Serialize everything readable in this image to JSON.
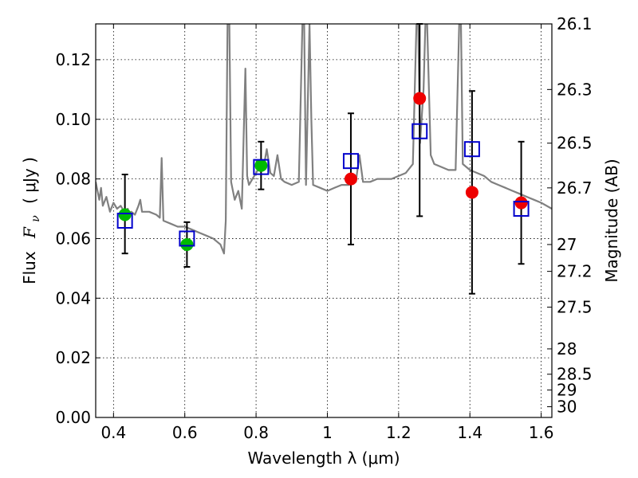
{
  "chart_data": {
    "type": "scatter",
    "xlabel": "Wavelength  λ (μm)",
    "ylabel_parts": [
      "Flux",
      "F",
      "ν",
      "(  μJy )"
    ],
    "ylabel_right": "Magnitude (AB)",
    "xlim": [
      0.35,
      1.63
    ],
    "ylim": [
      0.0,
      0.132
    ],
    "grid": true,
    "x_ticks": [
      0.4,
      0.6,
      0.8,
      1.0,
      1.2,
      1.4,
      1.6
    ],
    "x_tick_labels": [
      "0.4",
      "0.6",
      "0.8",
      "1",
      "1.2",
      "1.4",
      "1.6"
    ],
    "y_ticks": [
      0.0,
      0.02,
      0.04,
      0.06,
      0.08,
      0.1,
      0.12
    ],
    "y_tick_labels": [
      "0.00",
      "0.02",
      "0.04",
      "0.06",
      "0.08",
      "0.10",
      "0.12"
    ],
    "right_ticks": [
      {
        "label": "26.1",
        "flux": 0.132
      },
      {
        "label": "26.3",
        "flux": 0.11
      },
      {
        "label": "26.5",
        "flux": 0.092
      },
      {
        "label": "26.7",
        "flux": 0.077
      },
      {
        "label": "27",
        "flux": 0.058
      },
      {
        "label": "27.2",
        "flux": 0.049
      },
      {
        "label": "27.5",
        "flux": 0.037
      },
      {
        "label": "28",
        "flux": 0.023
      },
      {
        "label": "28.5",
        "flux": 0.0145
      },
      {
        "label": "29",
        "flux": 0.0092
      },
      {
        "label": "30",
        "flux": 0.0036
      }
    ],
    "colors": {
      "spectrum": "#808080",
      "model_squares": "#0000cc",
      "green_points": "#00bb00",
      "red_points": "#ee0000",
      "error_bars": "#000000"
    },
    "spectrum": [
      [
        0.35,
        0.079
      ],
      [
        0.36,
        0.073
      ],
      [
        0.365,
        0.077
      ],
      [
        0.37,
        0.071
      ],
      [
        0.38,
        0.074
      ],
      [
        0.39,
        0.069
      ],
      [
        0.4,
        0.072
      ],
      [
        0.41,
        0.07
      ],
      [
        0.42,
        0.071
      ],
      [
        0.43,
        0.069
      ],
      [
        0.44,
        0.07
      ],
      [
        0.445,
        0.068
      ],
      [
        0.45,
        0.069
      ],
      [
        0.46,
        0.068
      ],
      [
        0.47,
        0.071
      ],
      [
        0.475,
        0.073
      ],
      [
        0.48,
        0.069
      ],
      [
        0.5,
        0.069
      ],
      [
        0.52,
        0.068
      ],
      [
        0.53,
        0.067
      ],
      [
        0.535,
        0.087
      ],
      [
        0.54,
        0.066
      ],
      [
        0.56,
        0.065
      ],
      [
        0.58,
        0.064
      ],
      [
        0.6,
        0.064
      ],
      [
        0.62,
        0.063
      ],
      [
        0.64,
        0.062
      ],
      [
        0.66,
        0.061
      ],
      [
        0.68,
        0.06
      ],
      [
        0.69,
        0.059
      ],
      [
        0.7,
        0.058
      ],
      [
        0.71,
        0.055
      ],
      [
        0.715,
        0.066
      ],
      [
        0.72,
        0.132
      ],
      [
        0.725,
        0.132
      ],
      [
        0.73,
        0.079
      ],
      [
        0.74,
        0.073
      ],
      [
        0.75,
        0.076
      ],
      [
        0.76,
        0.07
      ],
      [
        0.77,
        0.117
      ],
      [
        0.775,
        0.081
      ],
      [
        0.78,
        0.078
      ],
      [
        0.79,
        0.08
      ],
      [
        0.8,
        0.082
      ],
      [
        0.81,
        0.084
      ],
      [
        0.82,
        0.083
      ],
      [
        0.83,
        0.09
      ],
      [
        0.84,
        0.082
      ],
      [
        0.85,
        0.081
      ],
      [
        0.86,
        0.088
      ],
      [
        0.87,
        0.08
      ],
      [
        0.88,
        0.079
      ],
      [
        0.9,
        0.078
      ],
      [
        0.92,
        0.079
      ],
      [
        0.93,
        0.132
      ],
      [
        0.935,
        0.132
      ],
      [
        0.94,
        0.078
      ],
      [
        0.95,
        0.132
      ],
      [
        0.955,
        0.1
      ],
      [
        0.96,
        0.078
      ],
      [
        0.98,
        0.077
      ],
      [
        1.0,
        0.076
      ],
      [
        1.02,
        0.077
      ],
      [
        1.04,
        0.078
      ],
      [
        1.06,
        0.078
      ],
      [
        1.08,
        0.079
      ],
      [
        1.09,
        0.088
      ],
      [
        1.1,
        0.079
      ],
      [
        1.12,
        0.079
      ],
      [
        1.14,
        0.08
      ],
      [
        1.16,
        0.08
      ],
      [
        1.18,
        0.08
      ],
      [
        1.2,
        0.081
      ],
      [
        1.22,
        0.082
      ],
      [
        1.24,
        0.085
      ],
      [
        1.25,
        0.132
      ],
      [
        1.255,
        0.132
      ],
      [
        1.26,
        0.092
      ],
      [
        1.27,
        0.11
      ],
      [
        1.275,
        0.132
      ],
      [
        1.28,
        0.132
      ],
      [
        1.29,
        0.088
      ],
      [
        1.3,
        0.085
      ],
      [
        1.32,
        0.084
      ],
      [
        1.34,
        0.083
      ],
      [
        1.36,
        0.083
      ],
      [
        1.37,
        0.132
      ],
      [
        1.375,
        0.132
      ],
      [
        1.38,
        0.085
      ],
      [
        1.4,
        0.083
      ],
      [
        1.42,
        0.082
      ],
      [
        1.44,
        0.081
      ],
      [
        1.46,
        0.079
      ],
      [
        1.48,
        0.078
      ],
      [
        1.5,
        0.077
      ],
      [
        1.52,
        0.076
      ],
      [
        1.54,
        0.075
      ],
      [
        1.56,
        0.074
      ],
      [
        1.58,
        0.073
      ],
      [
        1.6,
        0.072
      ],
      [
        1.63,
        0.07
      ]
    ],
    "model_squares": [
      {
        "x": 0.432,
        "y": 0.066
      },
      {
        "x": 0.606,
        "y": 0.06
      },
      {
        "x": 0.814,
        "y": 0.084
      },
      {
        "x": 1.066,
        "y": 0.086
      },
      {
        "x": 1.259,
        "y": 0.096
      },
      {
        "x": 1.406,
        "y": 0.09
      },
      {
        "x": 1.544,
        "y": 0.07
      }
    ],
    "observed": [
      {
        "x": 0.432,
        "y": 0.068,
        "yerr": [
          0.055,
          0.0815
        ],
        "color": "green"
      },
      {
        "x": 0.606,
        "y": 0.058,
        "yerr": [
          0.0505,
          0.0655
        ],
        "color": "green"
      },
      {
        "x": 0.814,
        "y": 0.0845,
        "yerr": [
          0.0765,
          0.0925
        ],
        "color": "green"
      },
      {
        "x": 1.066,
        "y": 0.08,
        "yerr": [
          0.058,
          0.102
        ],
        "color": "red"
      },
      {
        "x": 1.259,
        "y": 0.107,
        "yerr": [
          0.0675,
          0.132
        ],
        "color": "red"
      },
      {
        "x": 1.406,
        "y": 0.0755,
        "yerr": [
          0.0415,
          0.1095
        ],
        "color": "red"
      },
      {
        "x": 1.544,
        "y": 0.072,
        "yerr": [
          0.0515,
          0.0925
        ],
        "color": "red"
      }
    ]
  }
}
